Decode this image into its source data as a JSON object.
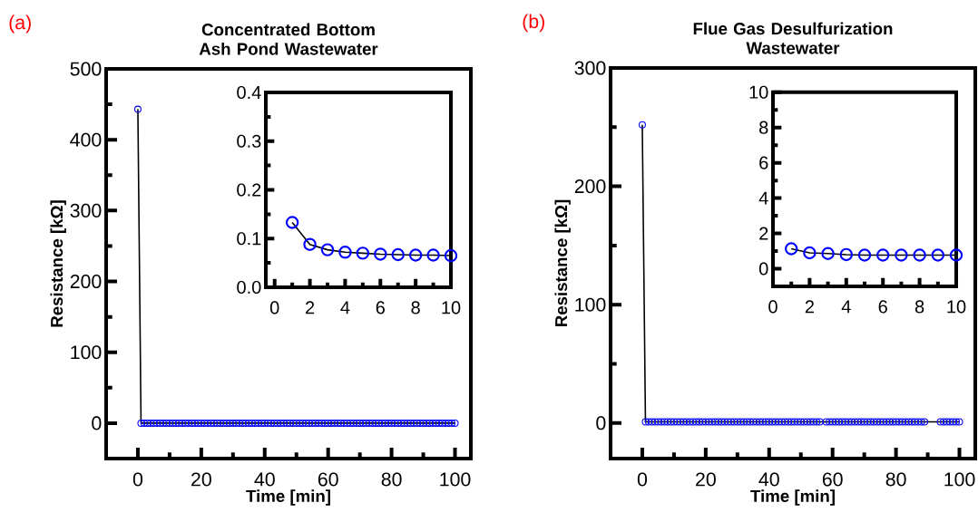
{
  "chart_data": [
    {
      "type": "line",
      "title": "Concentrated Bottom Ash Pond Wastewater",
      "xlabel": "Time [min]",
      "ylabel": "Resistance [kΩ]",
      "annotations": [
        "(a)"
      ],
      "marker": "circle",
      "x": [
        0,
        1,
        2,
        3,
        4,
        5,
        6,
        7,
        8,
        9,
        10,
        11,
        12,
        13,
        14,
        15,
        16,
        17,
        18,
        19,
        20,
        21,
        22,
        23,
        24,
        25,
        26,
        27,
        28,
        29,
        30,
        31,
        32,
        33,
        34,
        35,
        36,
        37,
        38,
        39,
        40,
        41,
        42,
        43,
        44,
        45,
        46,
        47,
        48,
        49,
        50,
        51,
        52,
        53,
        54,
        55,
        56,
        57,
        58,
        59,
        60,
        61,
        62,
        63,
        64,
        65,
        66,
        67,
        68,
        69,
        70,
        71,
        72,
        73,
        74,
        75,
        76,
        77,
        78,
        79,
        80,
        81,
        82,
        83,
        84,
        85,
        86,
        87,
        88,
        89,
        90,
        91,
        92,
        93,
        94,
        95,
        96,
        97,
        98,
        99,
        100
      ],
      "series": [
        {
          "color": "#0000ff",
          "values": [
            443,
            0,
            0,
            0,
            0,
            0,
            0,
            0,
            0,
            0,
            0,
            0,
            0,
            0,
            0,
            0,
            0,
            0,
            0,
            0,
            0,
            0,
            0,
            0,
            0,
            0,
            0,
            0,
            0,
            0,
            0,
            0,
            0,
            0,
            0,
            0,
            0,
            0,
            0,
            0,
            0,
            0,
            0,
            0,
            0,
            0,
            0,
            0,
            0,
            0,
            0,
            0,
            0,
            0,
            0,
            0,
            0,
            0,
            0,
            0,
            0,
            0,
            0,
            0,
            0,
            0,
            0,
            0,
            0,
            0,
            0,
            0,
            0,
            0,
            0,
            0,
            0,
            0,
            0,
            0,
            0,
            0,
            0,
            0,
            0,
            0,
            0,
            0,
            0,
            0,
            0,
            0,
            0,
            0,
            0,
            0,
            0,
            0,
            0,
            0,
            0
          ]
        }
      ],
      "xlim": [
        -10,
        105
      ],
      "ylim": [
        -50,
        500
      ],
      "xticks": [
        0,
        {
          "value": 10,
          "label": null
        },
        20,
        {
          "value": 30,
          "label": null
        },
        40,
        {
          "value": 50,
          "label": null
        },
        60,
        {
          "value": 70,
          "label": null
        },
        80,
        {
          "value": 90,
          "label": null
        },
        100
      ],
      "yticks": [
        0,
        {
          "value": 50,
          "label": null
        },
        100,
        {
          "value": 150,
          "label": null
        },
        200,
        {
          "value": 250,
          "label": null
        },
        300,
        {
          "value": 350,
          "label": null
        },
        400,
        {
          "value": 450,
          "label": null
        },
        500
      ]
    },
    {
      "type": "line",
      "marker": "circle",
      "x": [
        1,
        2,
        3,
        4,
        5,
        6,
        7,
        8,
        9,
        10
      ],
      "series": [
        {
          "color": "#0000ff",
          "values": [
            0.133,
            0.088,
            0.077,
            0.072,
            0.07,
            0.068,
            0.067,
            0.066,
            0.066,
            0.065
          ]
        }
      ],
      "xlim": [
        -0.5,
        10
      ],
      "ylim": [
        0,
        0.4
      ],
      "xticks": [
        0,
        {
          "value": 1,
          "label": null
        },
        2,
        {
          "value": 3,
          "label": null
        },
        4,
        {
          "value": 5,
          "label": null
        },
        6,
        {
          "value": 7,
          "label": null
        },
        8,
        {
          "value": 9,
          "label": null
        },
        10
      ],
      "yticks": [
        {
          "value": 0,
          "label": "0.0"
        },
        {
          "value": 0.05,
          "label": null
        },
        0.1,
        {
          "value": 0.15,
          "label": null
        },
        0.2,
        {
          "value": 0.25,
          "label": null
        },
        0.3,
        {
          "value": 0.35,
          "label": null
        },
        0.4
      ]
    },
    {
      "type": "line",
      "title": "Flue Gas Desulfurization Wastewater",
      "xlabel": "Time [min]",
      "ylabel": "Resistance [kΩ]",
      "annotations": [
        "(b)"
      ],
      "marker": "circle",
      "x": [
        0,
        1,
        2,
        3,
        4,
        5,
        6,
        7,
        8,
        9,
        10,
        11,
        12,
        13,
        14,
        15,
        16,
        17,
        18,
        19,
        20,
        21,
        22,
        23,
        24,
        25,
        26,
        27,
        28,
        29,
        30,
        31,
        32,
        33,
        34,
        35,
        36,
        37,
        38,
        39,
        40,
        41,
        42,
        43,
        44,
        45,
        46,
        47,
        48,
        49,
        50,
        51,
        52,
        53,
        54,
        55,
        56,
        57,
        58,
        59,
        60,
        61,
        62,
        63,
        64,
        65,
        66,
        67,
        68,
        69,
        70,
        71,
        72,
        73,
        74,
        75,
        76,
        77,
        78,
        79,
        80,
        81,
        82,
        83,
        84,
        85,
        86,
        87,
        88,
        89,
        90,
        91,
        92,
        93,
        94,
        95,
        96,
        97,
        98,
        99,
        100
      ],
      "series": [
        {
          "color": "#0000ff",
          "values": [
            252,
            1,
            1,
            1,
            1,
            1,
            1,
            1,
            1,
            1,
            1,
            1,
            1,
            1,
            1,
            1,
            1,
            1,
            1,
            1,
            1,
            1,
            1,
            1,
            1,
            1,
            1,
            1,
            1,
            1,
            1,
            1,
            1,
            1,
            1,
            1,
            1,
            1,
            1,
            1,
            1,
            1,
            1,
            1,
            1,
            1,
            1,
            1,
            1,
            1,
            1,
            1,
            1,
            1,
            1,
            1,
            1,
            null,
            1,
            1,
            1,
            1,
            1,
            1,
            1,
            1,
            1,
            1,
            1,
            1,
            1,
            1,
            1,
            1,
            1,
            1,
            1,
            1,
            1,
            1,
            1,
            1,
            1,
            1,
            1,
            1,
            1,
            1,
            1,
            1,
            null,
            null,
            null,
            null,
            1,
            1,
            1,
            1,
            1,
            1,
            1
          ]
        }
      ],
      "xlim": [
        -10,
        105
      ],
      "ylim": [
        -30,
        300
      ],
      "xticks": [
        0,
        {
          "value": 10,
          "label": null
        },
        20,
        {
          "value": 30,
          "label": null
        },
        40,
        {
          "value": 50,
          "label": null
        },
        60,
        {
          "value": 70,
          "label": null
        },
        80,
        {
          "value": 90,
          "label": null
        },
        100
      ],
      "yticks": [
        0,
        {
          "value": 50,
          "label": null
        },
        100,
        {
          "value": 150,
          "label": null
        },
        200,
        {
          "value": 250,
          "label": null
        },
        300
      ]
    },
    {
      "type": "line",
      "marker": "circle",
      "x": [
        1,
        2,
        3,
        4,
        5,
        6,
        7,
        8,
        9,
        10
      ],
      "series": [
        {
          "color": "#0000ff",
          "values": [
            1.13,
            0.9,
            0.86,
            0.8,
            0.77,
            0.77,
            0.77,
            0.77,
            0.77,
            0.77
          ]
        }
      ],
      "xlim": [
        0,
        10
      ],
      "ylim": [
        -1,
        10
      ],
      "xticks": [
        0,
        {
          "value": 1,
          "label": null
        },
        2,
        {
          "value": 3,
          "label": null
        },
        4,
        {
          "value": 5,
          "label": null
        },
        6,
        {
          "value": 7,
          "label": null
        },
        8,
        {
          "value": 9,
          "label": null
        },
        10
      ],
      "yticks": [
        0,
        {
          "value": 1,
          "label": null
        },
        2,
        {
          "value": 3,
          "label": null
        },
        4,
        {
          "value": 5,
          "label": null
        },
        6,
        {
          "value": 7,
          "label": null
        },
        8,
        {
          "value": 9,
          "label": null
        },
        10
      ]
    }
  ]
}
